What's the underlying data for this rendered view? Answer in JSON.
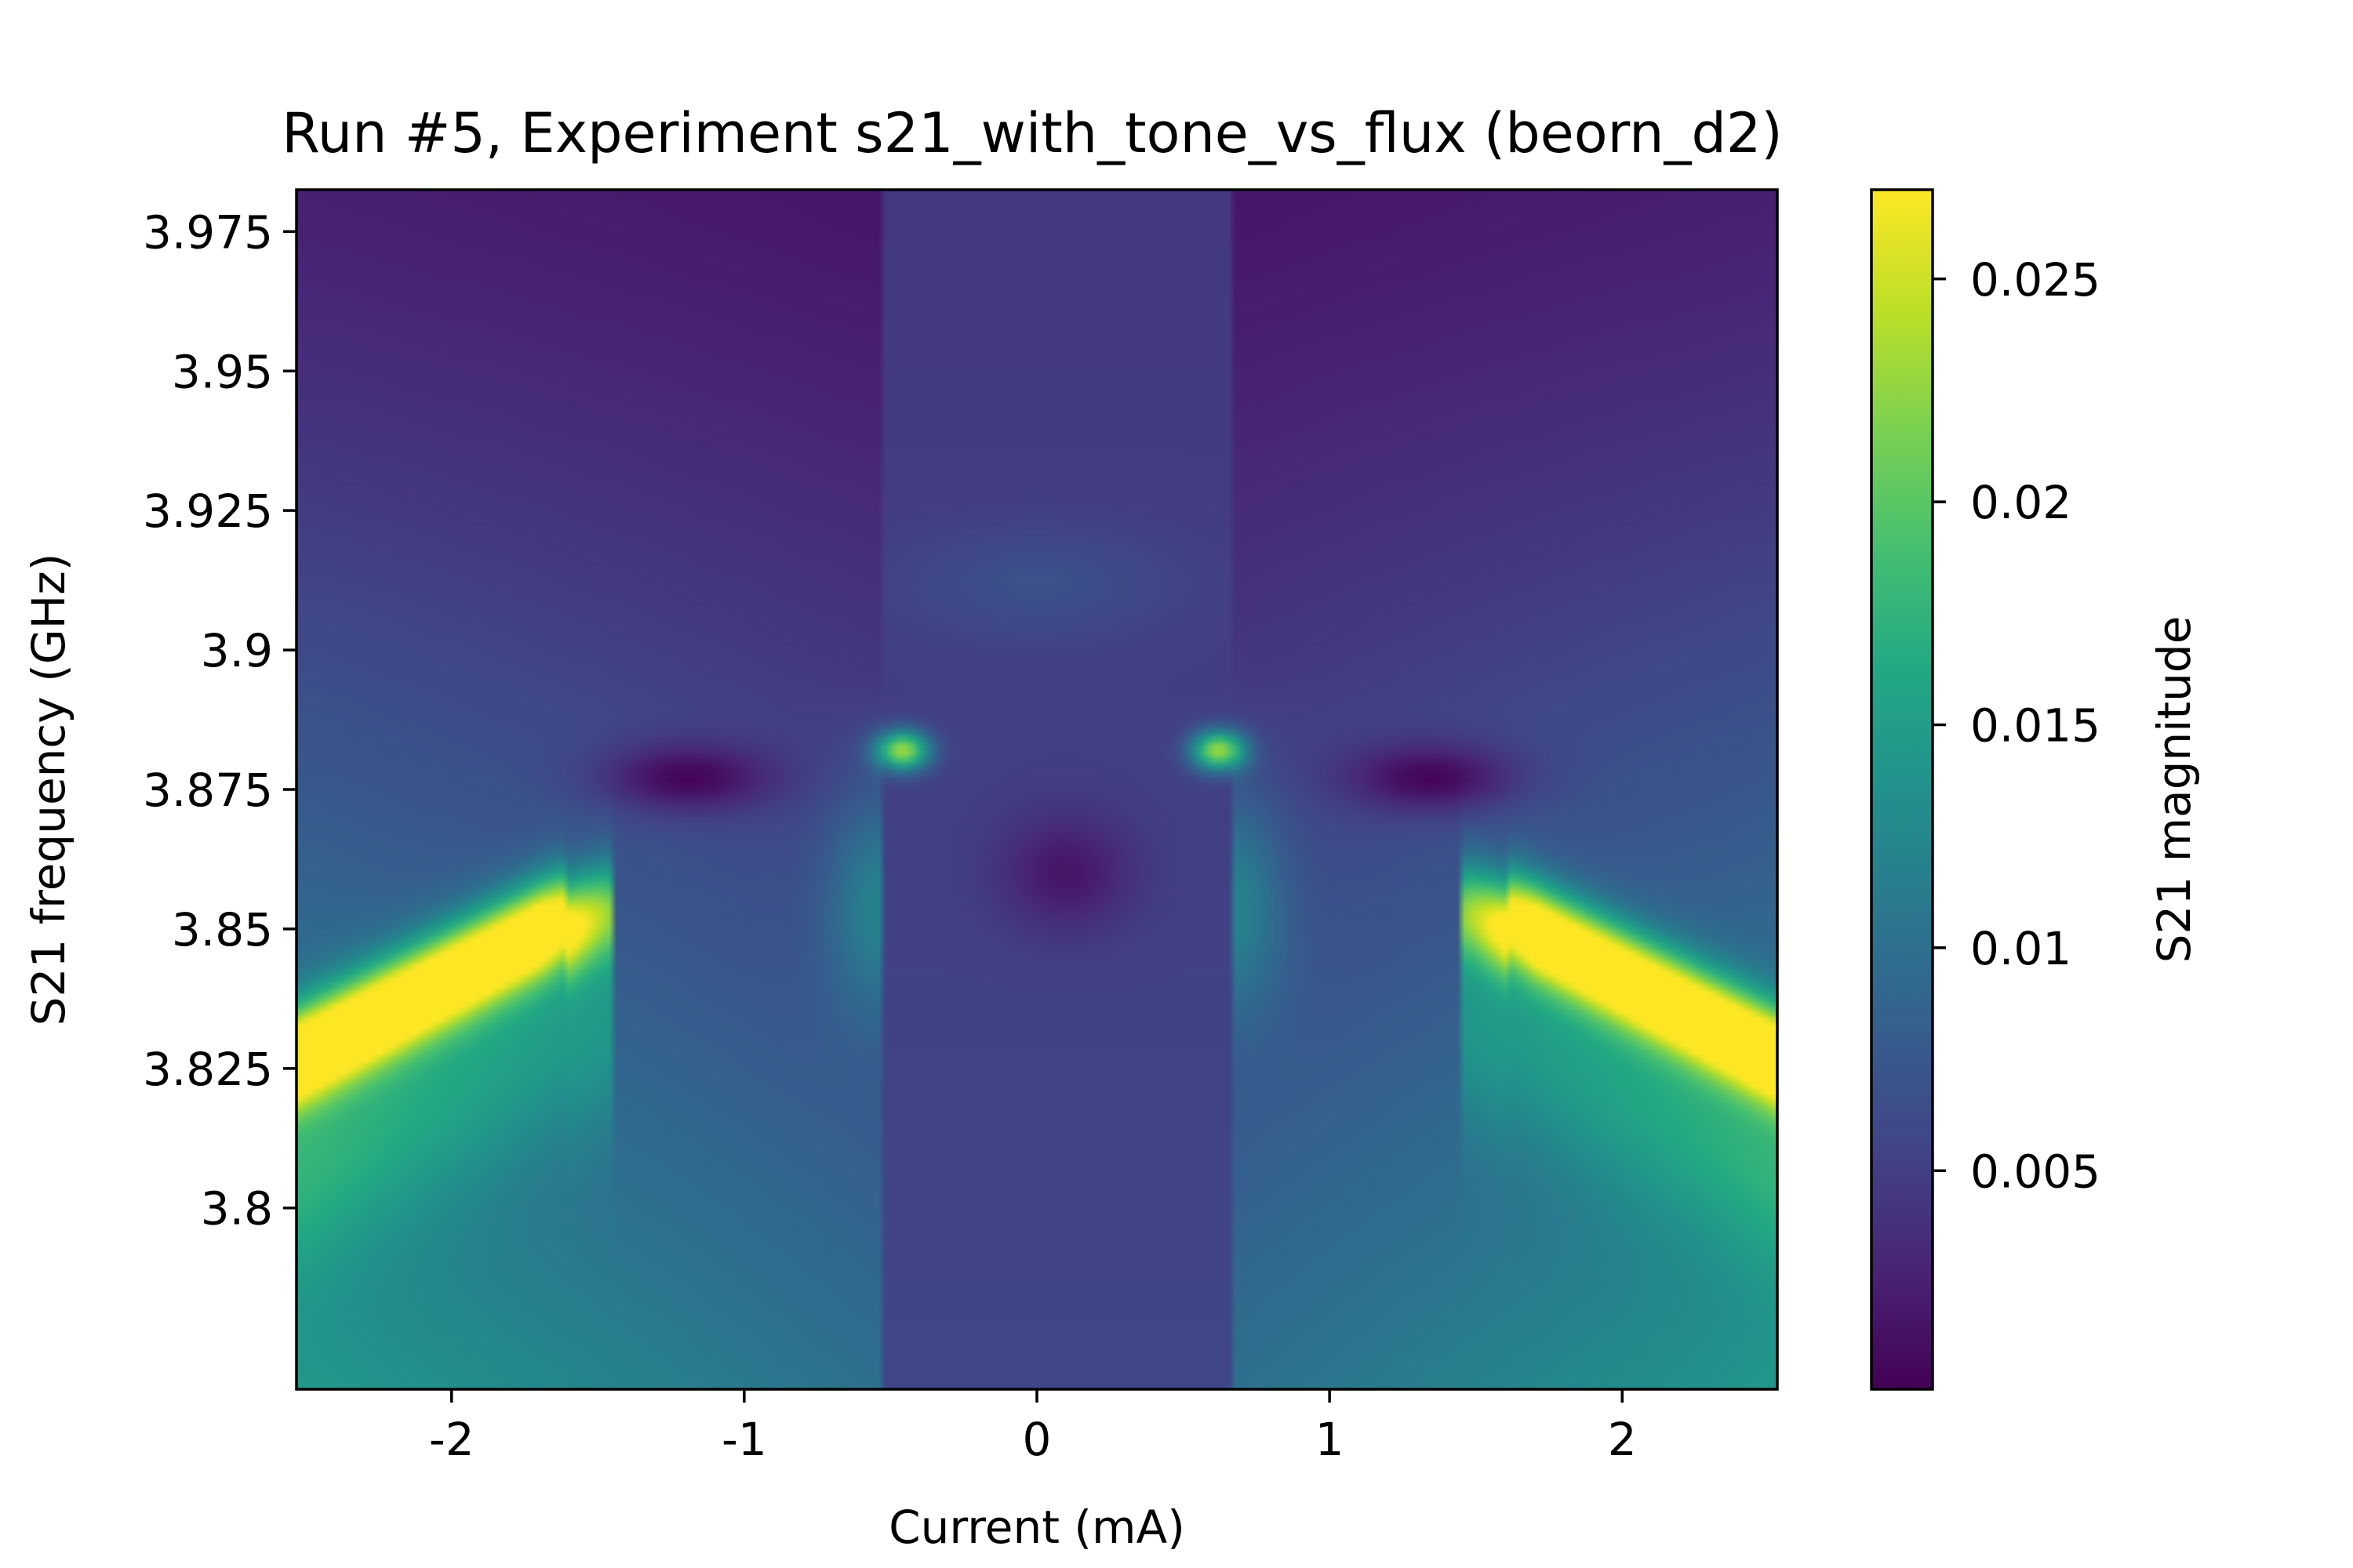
{
  "chart_data": {
    "type": "heatmap",
    "title": "Run #5, Experiment s21_with_tone_vs_flux (beorn_d2)",
    "xlabel": "Current (mA)",
    "ylabel": "S21 frequency (GHz)",
    "colorbar_label": "S21 magnitude",
    "xlim": [
      -2.53,
      2.53
    ],
    "ylim": [
      3.7675,
      3.9825
    ],
    "zlim": [
      0.0001,
      0.027
    ],
    "colormap": "viridis",
    "grid": false,
    "x_ticks": [
      {
        "value": -2,
        "label": "-2"
      },
      {
        "value": -1,
        "label": "-1"
      },
      {
        "value": 0,
        "label": "0"
      },
      {
        "value": 1,
        "label": "1"
      },
      {
        "value": 2,
        "label": "2"
      }
    ],
    "y_ticks": [
      {
        "value": 3.8,
        "label": "3.8"
      },
      {
        "value": 3.825,
        "label": "3.825"
      },
      {
        "value": 3.85,
        "label": "3.85"
      },
      {
        "value": 3.875,
        "label": "3.875"
      },
      {
        "value": 3.9,
        "label": "3.9"
      },
      {
        "value": 3.925,
        "label": "3.925"
      },
      {
        "value": 3.95,
        "label": "3.95"
      },
      {
        "value": 3.975,
        "label": "3.975"
      }
    ],
    "colorbar_ticks": [
      {
        "value": 0.005,
        "label": "0.005"
      },
      {
        "value": 0.01,
        "label": "0.01"
      },
      {
        "value": 0.015,
        "label": "0.015"
      },
      {
        "value": 0.02,
        "label": "0.02"
      },
      {
        "value": 0.025,
        "label": "0.025"
      }
    ],
    "features": {
      "outer_branch_peak_points": [
        [
          -2.45,
          3.829
        ],
        [
          -2.0,
          3.838
        ],
        [
          -1.65,
          3.852
        ],
        [
          1.8,
          3.85
        ],
        [
          2.1,
          3.842
        ],
        [
          2.45,
          3.829
        ]
      ],
      "outer_branch_peak_value": 0.024,
      "inner_hotspots": [
        [
          -0.46,
          3.882
        ],
        [
          0.62,
          3.882
        ]
      ],
      "inner_hotspot_value": 0.018,
      "dark_lobes": [
        [
          -1.2,
          3.877
        ],
        [
          1.35,
          3.877
        ],
        [
          0.1,
          3.86
        ]
      ],
      "central_band_x": [
        -0.53,
        0.66
      ],
      "background_value_top": 0.0015,
      "background_value_bottom": 0.011
    }
  }
}
